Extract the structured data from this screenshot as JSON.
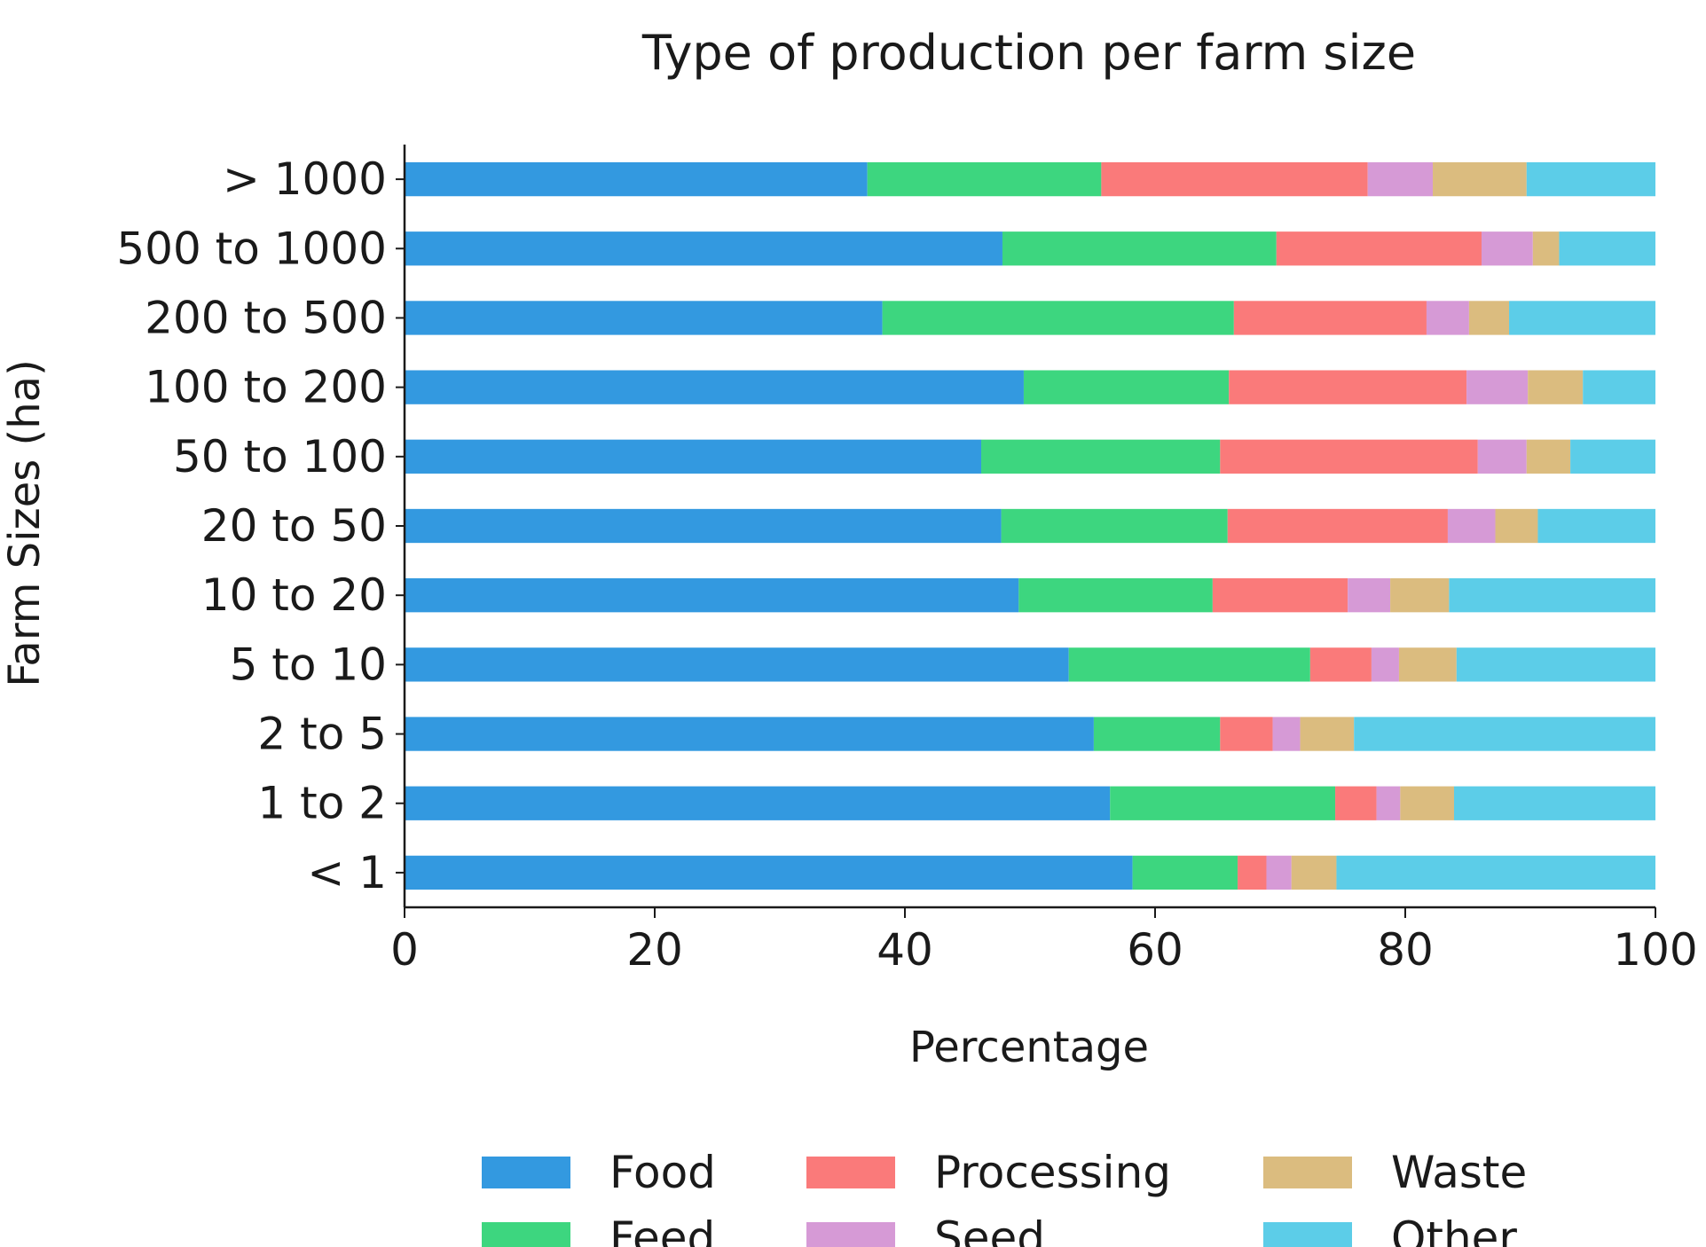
{
  "chart_data": {
    "type": "bar",
    "orientation": "horizontal",
    "stacked": true,
    "title": "Type of production per farm size",
    "xlabel": "Percentage",
    "ylabel": "Farm Sizes (ha)",
    "xlim": [
      0,
      100
    ],
    "xticks": [
      0,
      20,
      40,
      60,
      80,
      100
    ],
    "grid": false,
    "legend_position": "bottom",
    "categories": [
      "> 1000",
      "500 to 1000",
      "200 to 500",
      "100 to 200",
      "50 to 100",
      "20 to 50",
      "10 to 20",
      "5 to 10",
      "2 to 5",
      "1 to 2",
      "< 1"
    ],
    "series": [
      {
        "name": "Food",
        "color": "#3399e0",
        "values": [
          37.0,
          47.8,
          38.2,
          49.5,
          46.1,
          47.7,
          49.1,
          53.1,
          55.1,
          56.4,
          58.2
        ]
      },
      {
        "name": "Feed",
        "color": "#3dd67f",
        "values": [
          18.7,
          21.9,
          28.1,
          16.4,
          19.1,
          18.1,
          15.5,
          19.3,
          10.1,
          18.0,
          8.4
        ]
      },
      {
        "name": "Processing",
        "color": "#fa7a7a",
        "values": [
          21.3,
          16.4,
          15.4,
          19.0,
          20.6,
          17.6,
          10.8,
          4.9,
          4.2,
          3.3,
          2.3
        ]
      },
      {
        "name": "Seed",
        "color": "#d69ad6",
        "values": [
          5.2,
          4.1,
          3.4,
          4.9,
          3.9,
          3.8,
          3.4,
          2.2,
          2.2,
          1.9,
          2.0
        ]
      },
      {
        "name": "Waste",
        "color": "#dbbc7f",
        "values": [
          7.5,
          2.1,
          3.2,
          4.4,
          3.5,
          3.4,
          4.7,
          4.6,
          4.3,
          4.3,
          3.6
        ]
      },
      {
        "name": "Other",
        "color": "#5ccde8",
        "values": [
          10.3,
          7.7,
          11.7,
          5.8,
          6.8,
          9.4,
          16.5,
          15.9,
          24.1,
          16.1,
          25.5
        ]
      }
    ]
  }
}
